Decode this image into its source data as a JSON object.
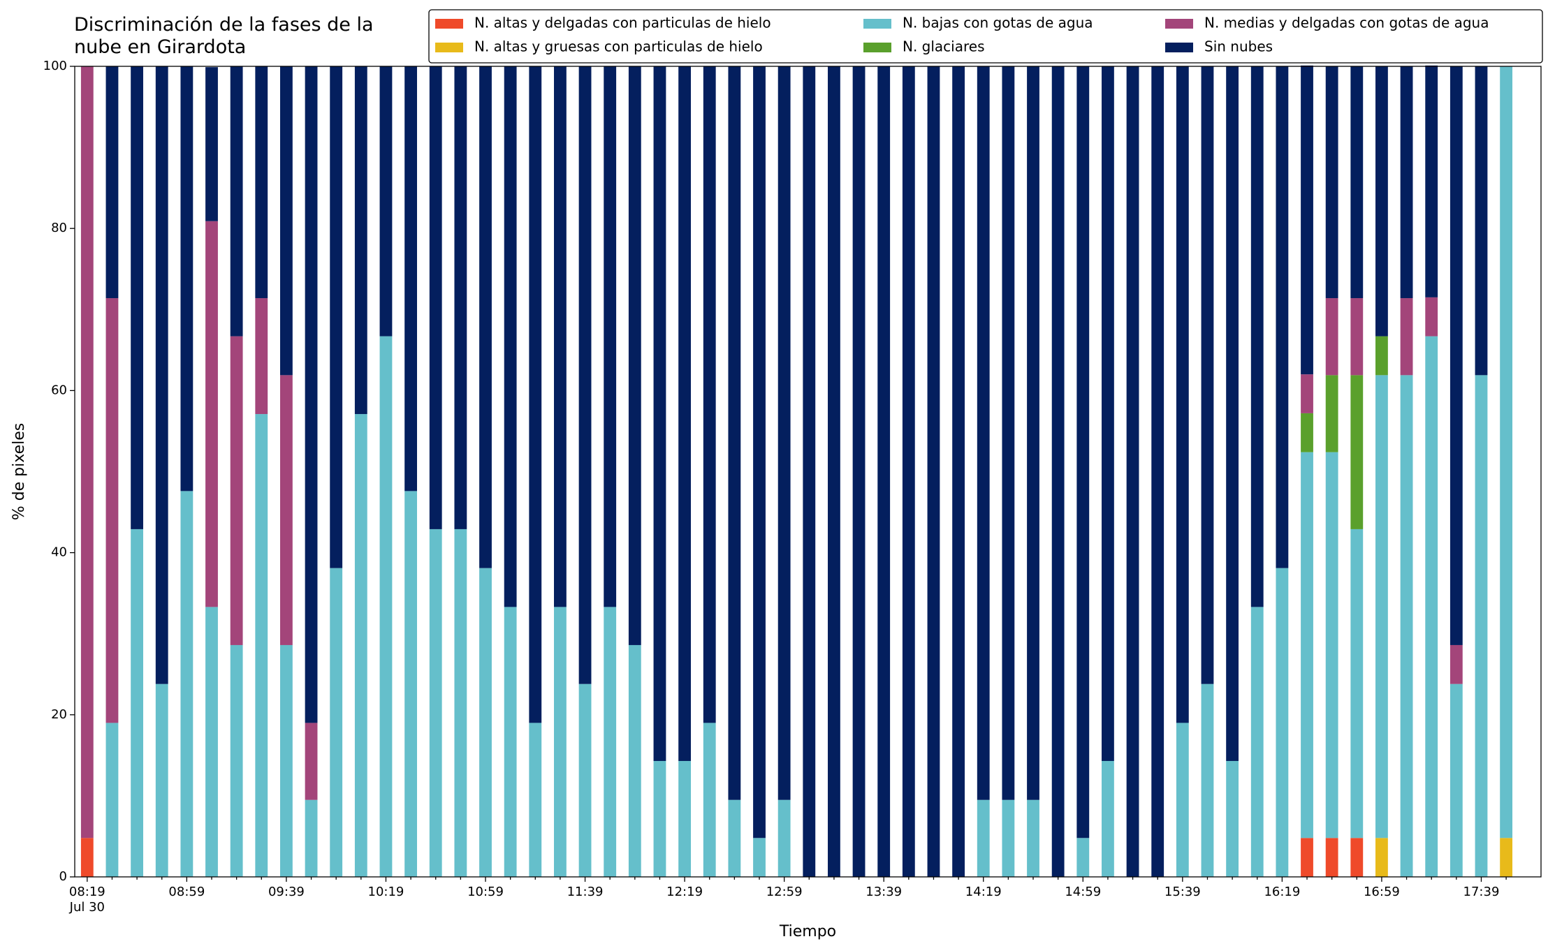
{
  "chart_data": {
    "type": "stacked_bar",
    "title": "Discriminación de la fases de la nube en Girardota",
    "xlabel": "Tiempo",
    "ylabel": "% de pixeles",
    "date_label": "Jul 30",
    "categories": [
      "08:19",
      null,
      null,
      null,
      "08:59",
      null,
      null,
      null,
      "09:39",
      null,
      null,
      null,
      "10:19",
      null,
      null,
      null,
      "10:59",
      null,
      null,
      null,
      "11:39",
      null,
      null,
      null,
      "12:19",
      null,
      null,
      null,
      "12:59",
      null,
      null,
      null,
      "13:39",
      null,
      null,
      null,
      "14:19",
      null,
      null,
      null,
      "14:59",
      null,
      null,
      null,
      "15:39",
      null,
      null,
      null,
      "16:19",
      null,
      null,
      null,
      "16:59",
      null,
      null,
      null,
      "17:39",
      null
    ],
    "xlim": [
      -0.5,
      58.4
    ],
    "ylim": [
      0,
      100
    ],
    "yticks": [
      0,
      20,
      40,
      60,
      80,
      100
    ],
    "series": [
      {
        "name": "N. altas y delgadas con particulas de hielo",
        "color": "#ef4a2a",
        "values": [
          4.8,
          0,
          0,
          0,
          0,
          0,
          0,
          0,
          0,
          0,
          0,
          0,
          0,
          0,
          0,
          0,
          0,
          0,
          0,
          0,
          0,
          0,
          0,
          0,
          0,
          0,
          0,
          0,
          0,
          0,
          0,
          0,
          0,
          0,
          0,
          0,
          0,
          0,
          0,
          0,
          0,
          0,
          0,
          0,
          0,
          0,
          0,
          0,
          0,
          4.8,
          4.8,
          4.8,
          0,
          0,
          0,
          0,
          0,
          0
        ]
      },
      {
        "name": "N. altas y gruesas con particulas de hielo",
        "color": "#e8ba1a",
        "values": [
          0,
          0,
          0,
          0,
          0,
          0,
          0,
          0,
          0,
          0,
          0,
          0,
          0,
          0,
          0,
          0,
          0,
          0,
          0,
          0,
          0,
          0,
          0,
          0,
          0,
          0,
          0,
          0,
          0,
          0,
          0,
          0,
          0,
          0,
          0,
          0,
          0,
          0,
          0,
          0,
          0,
          0,
          0,
          0,
          0,
          0,
          0,
          0,
          0,
          0,
          0,
          0,
          4.8,
          0,
          0,
          0,
          0,
          4.8
        ]
      },
      {
        "name": "N. bajas con gotas de agua",
        "color": "#65bfcb",
        "values": [
          0,
          19.0,
          42.9,
          23.8,
          47.6,
          33.3,
          28.6,
          57.1,
          28.6,
          9.5,
          38.1,
          57.1,
          66.7,
          47.6,
          42.9,
          42.9,
          38.1,
          33.3,
          19.0,
          33.3,
          23.8,
          33.3,
          28.6,
          14.3,
          14.3,
          19.0,
          9.5,
          4.8,
          9.5,
          0,
          0,
          0,
          0,
          0,
          0,
          0,
          9.5,
          9.5,
          9.5,
          0,
          4.8,
          14.3,
          0,
          0,
          19.0,
          23.8,
          14.3,
          33.3,
          38.1,
          47.6,
          47.6,
          38.1,
          57.1,
          61.9,
          66.7,
          23.8,
          61.9,
          95.2
        ]
      },
      {
        "name": "N. glaciares",
        "color": "#5aa02c",
        "values": [
          0,
          0,
          0,
          0,
          0,
          0,
          0,
          0,
          0,
          0,
          0,
          0,
          0,
          0,
          0,
          0,
          0,
          0,
          0,
          0,
          0,
          0,
          0,
          0,
          0,
          0,
          0,
          0,
          0,
          0,
          0,
          0,
          0,
          0,
          0,
          0,
          0,
          0,
          0,
          0,
          0,
          0,
          0,
          0,
          0,
          0,
          0,
          0,
          0,
          4.8,
          9.5,
          19.0,
          4.8,
          0,
          0,
          0,
          0,
          0
        ]
      },
      {
        "name": "N. medias y delgadas con gotas de agua",
        "color": "#a3457a",
        "values": [
          95.2,
          52.4,
          0,
          0,
          0,
          47.6,
          38.1,
          14.3,
          33.3,
          9.5,
          0,
          0,
          0,
          0,
          0,
          0,
          0,
          0,
          0,
          0,
          0,
          0,
          0,
          0,
          0,
          0,
          0,
          0,
          0,
          0,
          0,
          0,
          0,
          0,
          0,
          0,
          0,
          0,
          0,
          0,
          0,
          0,
          0,
          0,
          0,
          0,
          0,
          0,
          0,
          4.8,
          9.5,
          9.5,
          0,
          9.5,
          4.8,
          4.8,
          0,
          0
        ]
      },
      {
        "name": "Sin nubes",
        "color": "#041f5e",
        "values": [
          0,
          28.6,
          57.1,
          76.2,
          52.4,
          19.0,
          33.3,
          28.6,
          38.1,
          81.0,
          61.9,
          42.9,
          33.3,
          52.4,
          57.1,
          57.1,
          61.9,
          66.7,
          81.0,
          66.7,
          76.2,
          66.7,
          71.4,
          85.7,
          85.7,
          81.0,
          90.5,
          95.2,
          90.5,
          100,
          100,
          100,
          100,
          100,
          100,
          100,
          90.5,
          90.5,
          90.5,
          100,
          95.2,
          85.7,
          100,
          100,
          81.0,
          76.2,
          85.7,
          66.7,
          61.9,
          38.1,
          28.6,
          28.6,
          33.3,
          28.6,
          28.6,
          71.4,
          38.1,
          0
        ]
      }
    ]
  }
}
